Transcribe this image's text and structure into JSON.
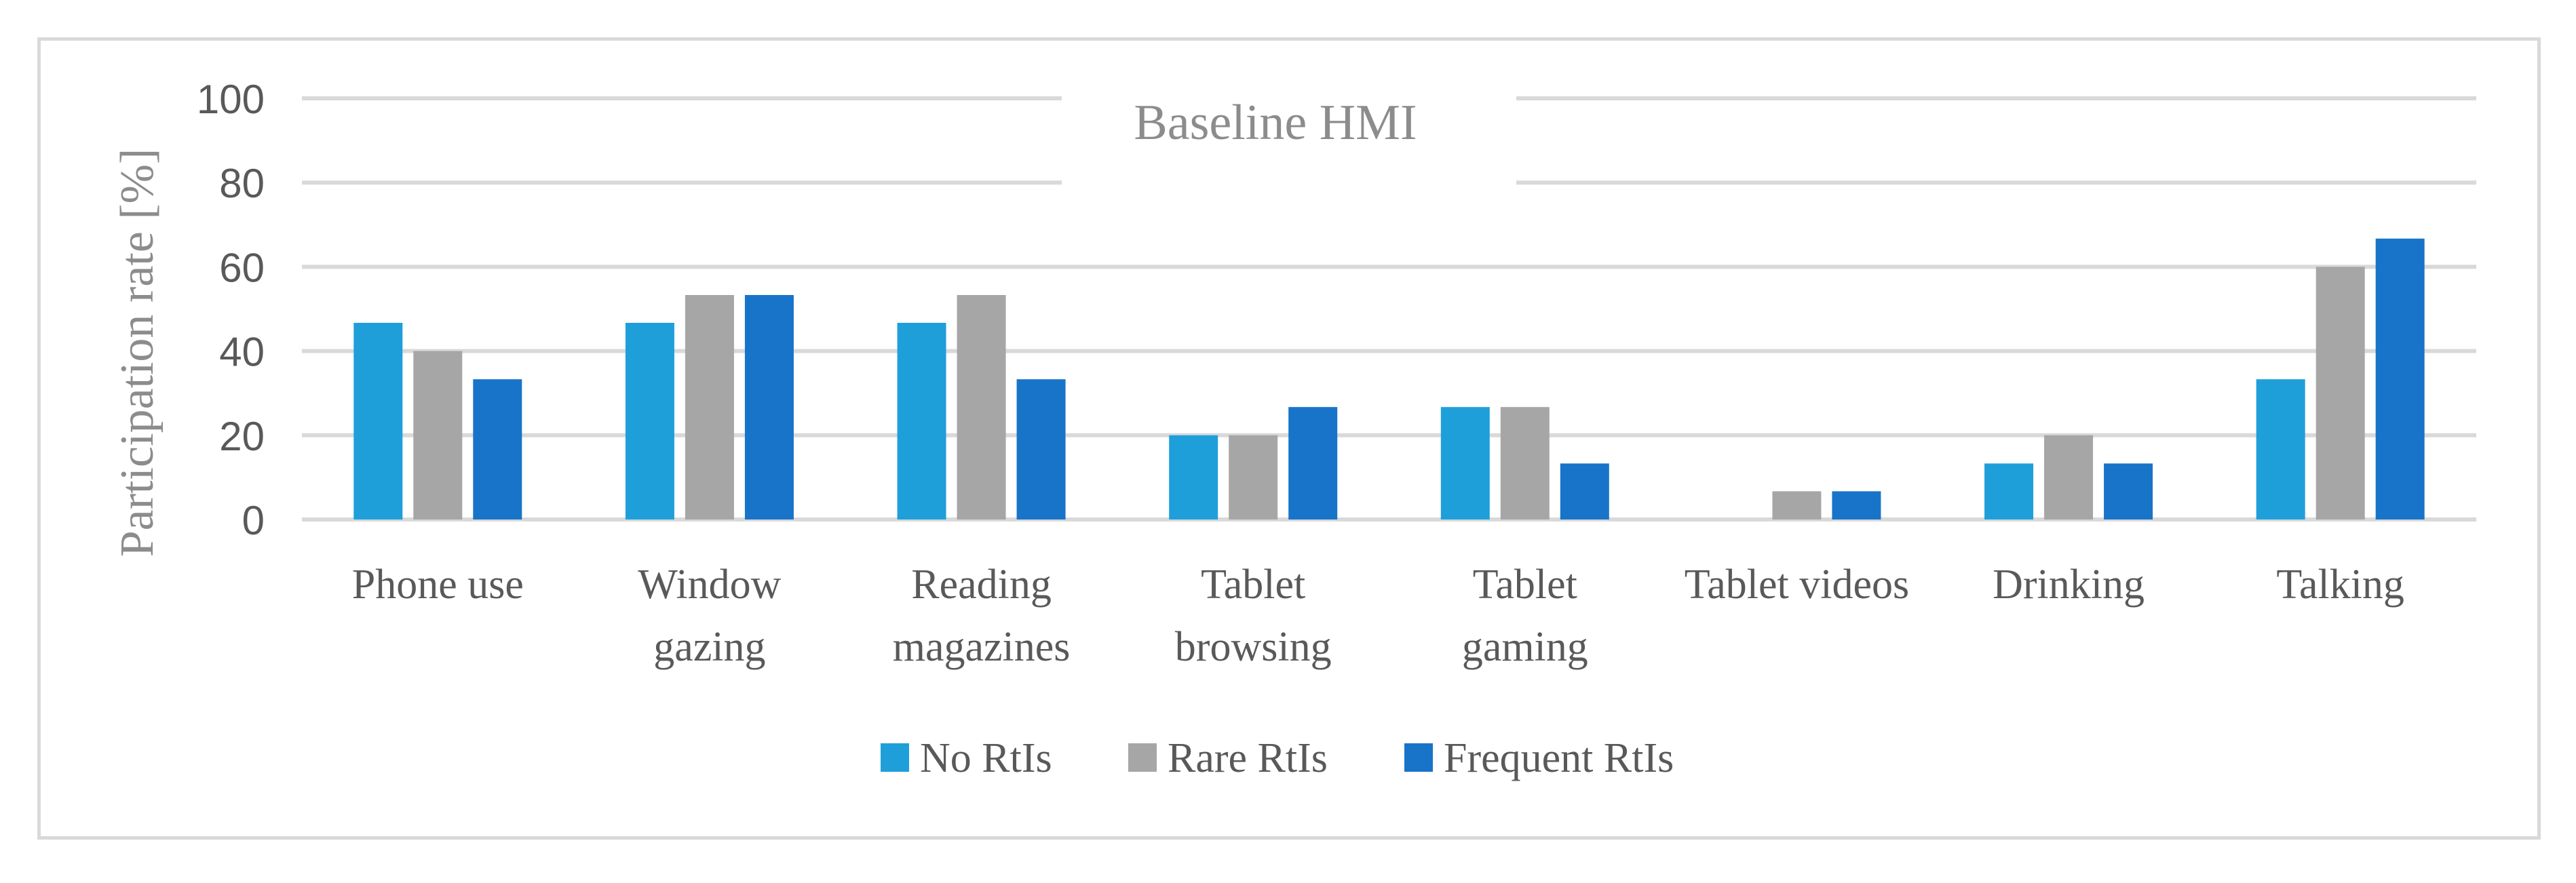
{
  "chart_data": {
    "type": "bar",
    "title": "Baseline HMI",
    "xlabel": "",
    "ylabel": "Participation rate [%]",
    "ylim": [
      0,
      100
    ],
    "yticks": [
      0,
      20,
      40,
      60,
      80,
      100
    ],
    "grid": true,
    "legend_position": "bottom",
    "categories": [
      [
        "Phone use"
      ],
      [
        "Window",
        "gazing"
      ],
      [
        "Reading",
        "magazines"
      ],
      [
        "Tablet",
        "browsing"
      ],
      [
        "Tablet",
        "gaming"
      ],
      [
        "Tablet videos"
      ],
      [
        "Drinking"
      ],
      [
        "Talking"
      ]
    ],
    "series": [
      {
        "name": "No RtIs",
        "color": "#1f9fda",
        "values": [
          46.7,
          46.7,
          46.7,
          20,
          26.7,
          0,
          13.3,
          33.3
        ]
      },
      {
        "name": "Rare RtIs",
        "color": "#a6a6a6",
        "values": [
          40,
          53.3,
          53.3,
          20,
          26.7,
          6.7,
          20,
          60
        ]
      },
      {
        "name": "Frequent RtIs",
        "color": "#1874c8",
        "values": [
          33.3,
          53.3,
          33.3,
          26.7,
          13.3,
          6.7,
          13.3,
          66.7
        ]
      }
    ]
  }
}
